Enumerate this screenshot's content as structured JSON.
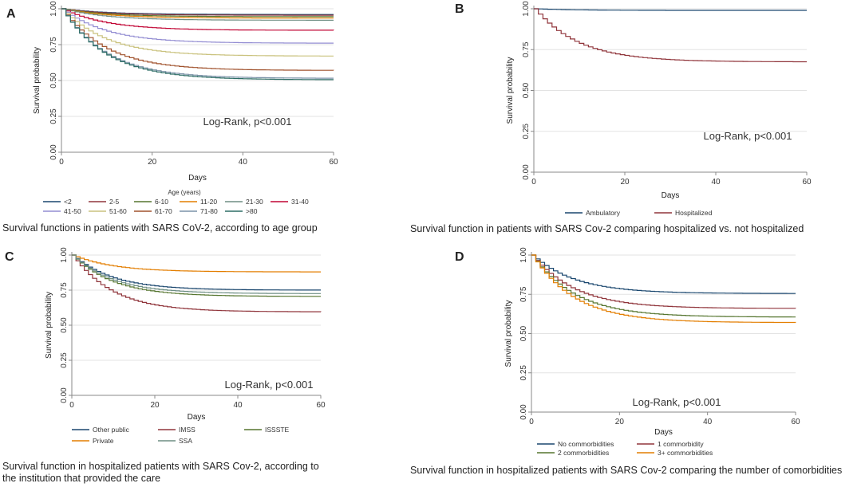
{
  "figure": {
    "colors": {
      "grid": "#e3e3e3",
      "axis": "#888888"
    }
  },
  "chart_data": [
    {
      "panel": "A",
      "type": "line",
      "title": "",
      "xlabel": "Days",
      "ylabel": "Survival probability",
      "xlim": [
        0,
        60
      ],
      "ylim": [
        0,
        1
      ],
      "xticks": [
        "0",
        "20",
        "40",
        "60"
      ],
      "yticks": [
        "0.00",
        "0.25",
        "0.50",
        "0.75",
        "1.00"
      ],
      "annotation": "Log-Rank, p<0.001",
      "legend_title": "Age (years)",
      "legend_columns": 6,
      "caption": "Survival functions in patients with SARS CoV-2, according to age group",
      "series": [
        {
          "name": "<2",
          "color": "#1a476f",
          "final": 0.96
        },
        {
          "name": "2-5",
          "color": "#90353b",
          "final": 0.955
        },
        {
          "name": "6-10",
          "color": "#55752f",
          "final": 0.945
        },
        {
          "name": "11-20",
          "color": "#e37e00",
          "final": 0.935
        },
        {
          "name": "21-30",
          "color": "#6e8e84",
          "final": 0.92
        },
        {
          "name": "31-40",
          "color": "#c10534",
          "final": 0.85
        },
        {
          "name": "41-50",
          "color": "#938dd2",
          "final": 0.76
        },
        {
          "name": "51-60",
          "color": "#cac27e",
          "final": 0.67
        },
        {
          "name": "61-70",
          "color": "#a0522d",
          "final": 0.57
        },
        {
          "name": "71-80",
          "color": "#7b92a8",
          "final": 0.515
        },
        {
          "name": ">80",
          "color": "#2d6d66",
          "final": 0.505
        }
      ]
    },
    {
      "panel": "B",
      "type": "line",
      "title": "",
      "xlabel": "Days",
      "ylabel": "Survival probability",
      "xlim": [
        0,
        60
      ],
      "ylim": [
        0,
        1
      ],
      "xticks": [
        "0",
        "20",
        "40",
        "60"
      ],
      "yticks": [
        "0.00",
        "0.25",
        "0.50",
        "0.75",
        "1.00"
      ],
      "annotation": "Log-Rank, p<0.001",
      "legend_columns": 2,
      "caption": "Survival function in patients with SARS Cov-2 comparing hospitalized vs. not hospitalized",
      "series": [
        {
          "name": "Ambulatory",
          "color": "#1a476f",
          "final": 0.99
        },
        {
          "name": "Hospitalized",
          "color": "#90353b",
          "final": 0.675
        }
      ]
    },
    {
      "panel": "C",
      "type": "line",
      "title": "",
      "xlabel": "Days",
      "ylabel": "Survival probability",
      "xlim": [
        0,
        60
      ],
      "ylim": [
        0,
        1
      ],
      "xticks": [
        "0",
        "20",
        "40",
        "60"
      ],
      "yticks": [
        "0.00",
        "0.25",
        "0.50",
        "0.75",
        "1.00"
      ],
      "annotation": "Log-Rank, p<0.001",
      "legend_columns": 3,
      "caption": "Survival function in hospitalized patients with SARS Cov-2, according to the institution that provided the care",
      "series": [
        {
          "name": "Other public",
          "color": "#1a476f",
          "final": 0.75
        },
        {
          "name": "IMSS",
          "color": "#90353b",
          "final": 0.595
        },
        {
          "name": "ISSSTE",
          "color": "#55752f",
          "final": 0.705
        },
        {
          "name": "Private",
          "color": "#e37e00",
          "final": 0.88
        },
        {
          "name": "SSA",
          "color": "#6e8e84",
          "final": 0.725
        }
      ]
    },
    {
      "panel": "D",
      "type": "line",
      "title": "",
      "xlabel": "Days",
      "ylabel": "Survival probability",
      "xlim": [
        0,
        60
      ],
      "ylim": [
        0,
        1
      ],
      "xticks": [
        "0",
        "20",
        "40",
        "60"
      ],
      "yticks": [
        "0.00",
        "0.25",
        "0.50",
        "0.75",
        "1.00"
      ],
      "annotation": "Log-Rank, p<0.001",
      "legend_columns": 2,
      "caption": "Survival function in hospitalized patients with SARS Cov-2 comparing the number of comorbidities",
      "series": [
        {
          "name": "No commorbidities",
          "color": "#1a476f",
          "final": 0.755
        },
        {
          "name": "1 commorbidity",
          "color": "#90353b",
          "final": 0.66
        },
        {
          "name": "2 commorbidities",
          "color": "#55752f",
          "final": 0.605
        },
        {
          "name": "3+ commorbidities",
          "color": "#e37e00",
          "final": 0.57
        }
      ]
    }
  ]
}
